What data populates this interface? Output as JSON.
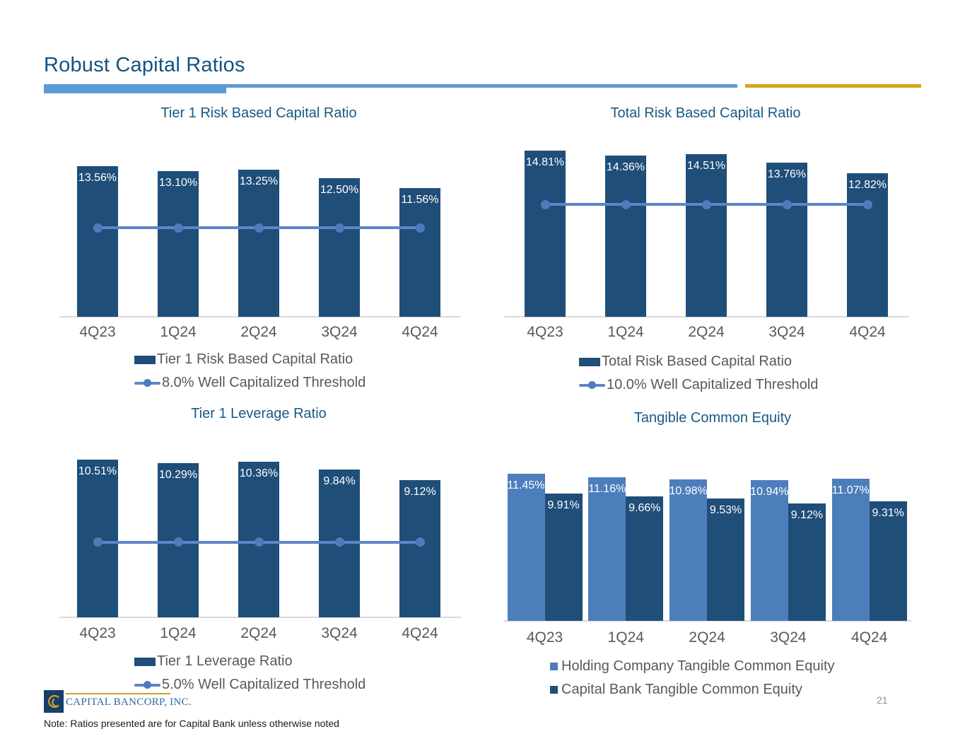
{
  "slide": {
    "title": "Robust Capital Ratios",
    "note": "Note: Ratios presented are for Capital Bank unless otherwise noted",
    "page_number": "21",
    "logo_text": "CAPITAL BANCORP, INC."
  },
  "colors": {
    "bar_navy": "#1F4E79",
    "bar_light_blue": "#4D7EBC",
    "threshold_line": "#5C86C6",
    "threshold_marker": "#4E7BBE",
    "header_accent_blue": "#5B9BD5",
    "header_accent_gold": "#D6A51C",
    "title_blue": "#175987",
    "text_gray": "#595959",
    "axis_gray": "#D9D9D9",
    "logo_navy": "#163E69",
    "logo_gold": "#C9A227"
  },
  "chart_data": [
    {
      "type": "bar",
      "title": "Tier 1 Risk Based Capital Ratio",
      "categories": [
        "4Q23",
        "1Q24",
        "2Q24",
        "3Q24",
        "4Q24"
      ],
      "series": [
        {
          "name": "Tier 1 Risk Based Capital Ratio",
          "values": [
            13.56,
            13.1,
            13.25,
            12.5,
            11.56
          ]
        }
      ],
      "threshold": {
        "value": 8.0,
        "label": "8.0% Well Capitalized Threshold"
      },
      "ylim": [
        0,
        14.5
      ],
      "grid": false,
      "legend_position": "bottom"
    },
    {
      "type": "bar",
      "title": "Total Risk Based Capital Ratio",
      "categories": [
        "4Q23",
        "1Q24",
        "2Q24",
        "3Q24",
        "4Q24"
      ],
      "series": [
        {
          "name": "Total Risk Based Capital Ratio",
          "values": [
            14.81,
            14.36,
            14.51,
            13.76,
            12.82
          ]
        }
      ],
      "threshold": {
        "value": 10.0,
        "label": "10.0% Well Capitalized Threshold"
      },
      "ylim": [
        0,
        15.6
      ],
      "grid": false,
      "legend_position": "bottom"
    },
    {
      "type": "bar",
      "title": "Tier 1 Leverage Ratio",
      "categories": [
        "4Q23",
        "1Q24",
        "2Q24",
        "3Q24",
        "4Q24"
      ],
      "series": [
        {
          "name": "Tier 1 Leverage Ratio",
          "values": [
            10.51,
            10.29,
            10.36,
            9.84,
            9.12
          ]
        }
      ],
      "threshold": {
        "value": 5.0,
        "label": "5.0% Well Capitalized Threshold"
      },
      "ylim": [
        0,
        11.1
      ],
      "grid": false,
      "legend_position": "bottom"
    },
    {
      "type": "bar",
      "title": "Tangible Common Equity",
      "categories": [
        "4Q23",
        "1Q24",
        "2Q24",
        "3Q24",
        "4Q24"
      ],
      "series": [
        {
          "name": "Holding Company Tangible Common Equity",
          "values": [
            11.45,
            11.16,
            10.98,
            10.94,
            11.07
          ]
        },
        {
          "name": "Capital Bank Tangible Common Equity",
          "values": [
            9.91,
            9.66,
            9.53,
            9.12,
            9.31
          ]
        }
      ],
      "ylim": [
        0,
        11.45
      ],
      "grid": false,
      "legend_position": "bottom"
    }
  ]
}
